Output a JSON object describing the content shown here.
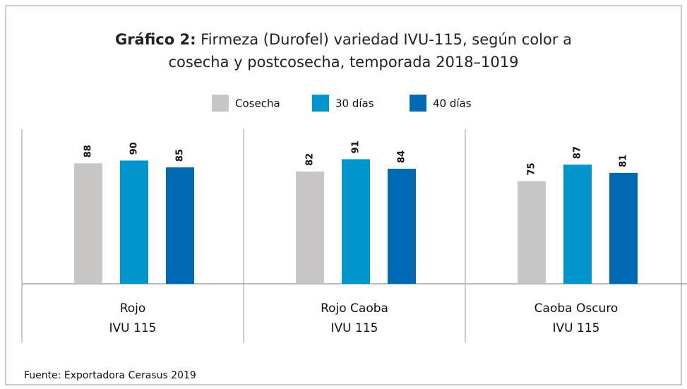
{
  "chart_data": {
    "type": "bar",
    "title_label": "Gráfico 2:",
    "title": "Firmeza (Durofel) variedad IVU-115, según color a cosecha y postcosecha, temporada 2018–1019",
    "categories": [
      "Rojo",
      "Rojo Caoba",
      "Caoba Oscuro"
    ],
    "category_sublabels": [
      "IVU 115",
      "IVU 115",
      "IVU 115"
    ],
    "series": [
      {
        "name": "Cosecha",
        "color": "#c8c6c4",
        "values": [
          88,
          82,
          75
        ]
      },
      {
        "name": "30 días",
        "color": "#0096cc",
        "values": [
          90,
          91,
          87
        ]
      },
      {
        "name": "40 días",
        "color": "#0069b4",
        "values": [
          85,
          84,
          81
        ]
      }
    ],
    "ylim": [
      0,
      100
    ],
    "source": "Fuente: Exportadora Cerasus 2019"
  }
}
